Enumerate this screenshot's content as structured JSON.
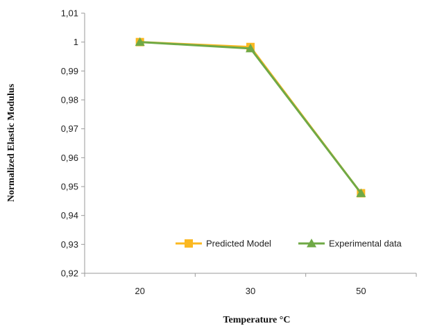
{
  "chart_data": {
    "type": "line",
    "title": "",
    "xlabel": "Temperature °C",
    "ylabel": "Normalized Elastic Modulus",
    "categories": [
      "20",
      "30",
      "50"
    ],
    "ylim": [
      0.92,
      1.01
    ],
    "yticks": [
      "1,01",
      "1",
      "0,99",
      "0,98",
      "0,97",
      "0,96",
      "0,95",
      "0,94",
      "0,93",
      "0,92"
    ],
    "ytick_values": [
      1.01,
      1.0,
      0.99,
      0.98,
      0.97,
      0.96,
      0.95,
      0.94,
      0.93,
      0.92
    ],
    "grid": false,
    "legend_position": "bottom-right",
    "series": [
      {
        "name": "Predicted Model",
        "values": [
          1.0,
          0.9983,
          0.9477
        ],
        "color": "#FBB821",
        "marker": "square"
      },
      {
        "name": "Experimental data",
        "values": [
          1.0,
          0.9978,
          0.9477
        ],
        "color": "#6FA946",
        "marker": "triangle"
      }
    ]
  }
}
